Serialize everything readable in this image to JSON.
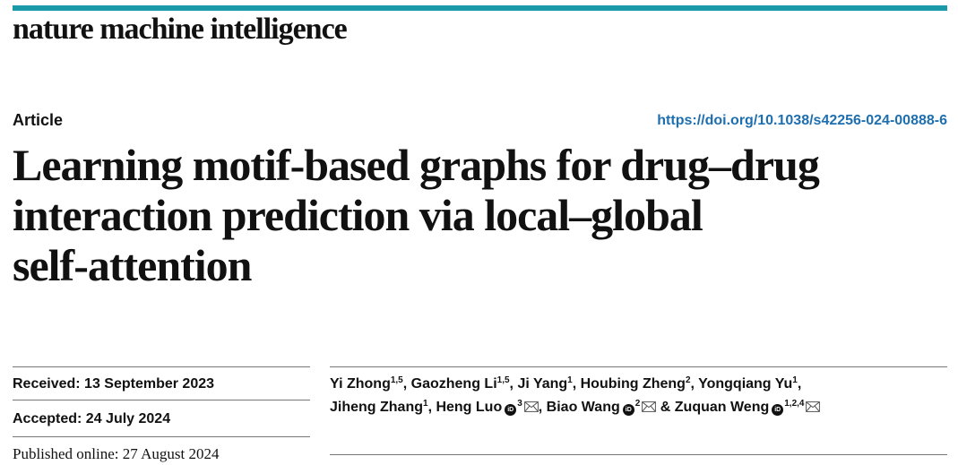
{
  "journal": {
    "name": "nature machine intelligence",
    "accent_color": "#1a9aa8"
  },
  "article": {
    "type": "Article",
    "doi": "https://doi.org/10.1038/s42256-024-00888-6",
    "title_lines": [
      "Learning motif-based graphs for drug–drug",
      "interaction prediction via local–global",
      "self-attention"
    ]
  },
  "dates": {
    "received": "Received: 13 September 2023",
    "accepted": "Accepted: 24 July 2024",
    "published": "Published online: 27 August 2024"
  },
  "authors": [
    {
      "name": "Yi Zhong",
      "affil": "1,5",
      "orcid": false,
      "email": false,
      "sep": ", "
    },
    {
      "name": "Gaozheng Li",
      "affil": "1,5",
      "orcid": false,
      "email": false,
      "sep": ", "
    },
    {
      "name": "Ji Yang",
      "affil": "1",
      "orcid": false,
      "email": false,
      "sep": ", "
    },
    {
      "name": "Houbing Zheng",
      "affil": "2",
      "orcid": false,
      "email": false,
      "sep": ", "
    },
    {
      "name": "Yongqiang Yu",
      "affil": "1",
      "orcid": false,
      "email": false,
      "sep": ","
    },
    {
      "name": "Jiheng Zhang",
      "affil": "1",
      "orcid": false,
      "email": false,
      "sep": ", "
    },
    {
      "name": "Heng Luo",
      "affil": "3",
      "orcid": true,
      "email": true,
      "sep": ", "
    },
    {
      "name": "Biao Wang",
      "affil": "2",
      "orcid": true,
      "email": true,
      "sep": " & "
    },
    {
      "name": "Zuquan Weng",
      "affil": "1,2,4",
      "orcid": true,
      "email": true,
      "sep": ""
    }
  ],
  "author_lines": [
    [
      0,
      1,
      2,
      3,
      4
    ],
    [
      5,
      6,
      7,
      8
    ]
  ],
  "icons": {
    "orcid": "orcid-icon",
    "email": "envelope-icon"
  },
  "colors": {
    "doi_link": "#1e6fb0"
  }
}
